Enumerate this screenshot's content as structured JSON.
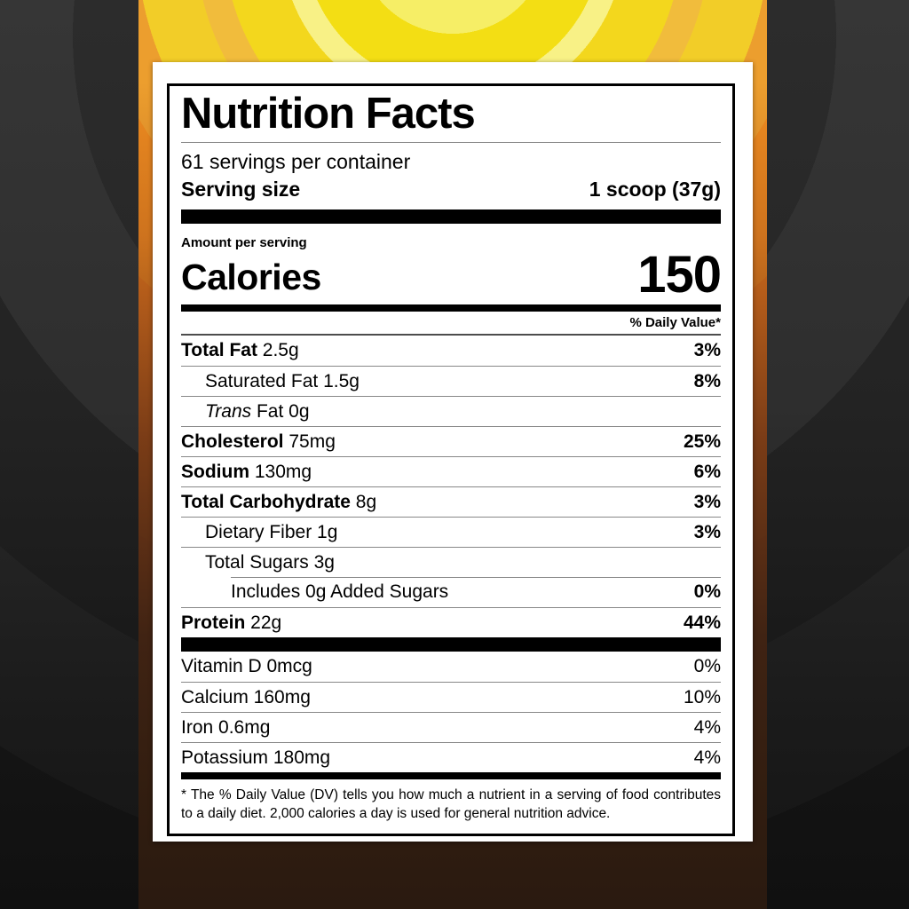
{
  "colors": {
    "accent_yellow": "#f3de14",
    "accent_orange": "#ee8c20",
    "package_brown": "#35200f",
    "backdrop_gray": "#2e2e2e",
    "label_bg": "#ffffff",
    "text": "#000000"
  },
  "label": {
    "title": "Nutrition Facts",
    "servings_per_container": "61 servings per container",
    "serving_size_label": "Serving size",
    "serving_size_value": "1 scoop (37g)",
    "amount_per_serving": "Amount per serving",
    "calories_label": "Calories",
    "calories_value": "150",
    "daily_value_header": "% Daily Value*",
    "rows": [
      {
        "b": "Total Fat",
        "rest": " 2.5g",
        "pct": "3%"
      },
      {
        "rest": "Saturated Fat 1.5g",
        "pct": "8%"
      },
      {
        "i": "Trans",
        "rest": " Fat 0g"
      },
      {
        "b": "Cholesterol",
        "rest": " 75mg",
        "pct": "25%"
      },
      {
        "b": "Sodium",
        "rest": " 130mg",
        "pct": "6%"
      },
      {
        "b": "Total Carbohydrate",
        "rest": " 8g",
        "pct": "3%"
      },
      {
        "rest": "Dietary Fiber 1g",
        "pct": "3%"
      },
      {
        "rest": "Total Sugars 3g"
      },
      {
        "rest": "Includes 0g Added Sugars",
        "pct": "0%"
      },
      {
        "b": "Protein",
        "rest": " 22g",
        "pct": "44%"
      }
    ],
    "micros": [
      {
        "rest": "Vitamin D 0mcg",
        "pct": "0%"
      },
      {
        "rest": "Calcium 160mg",
        "pct": "10%"
      },
      {
        "rest": "Iron 0.6mg",
        "pct": "4%"
      },
      {
        "rest": "Potassium 180mg",
        "pct": "4%"
      }
    ],
    "footnote": "* The % Daily Value (DV) tells you how much a nutrient in a serving of food contributes to a daily diet. 2,000 calories a day is used for general nutrition advice."
  }
}
